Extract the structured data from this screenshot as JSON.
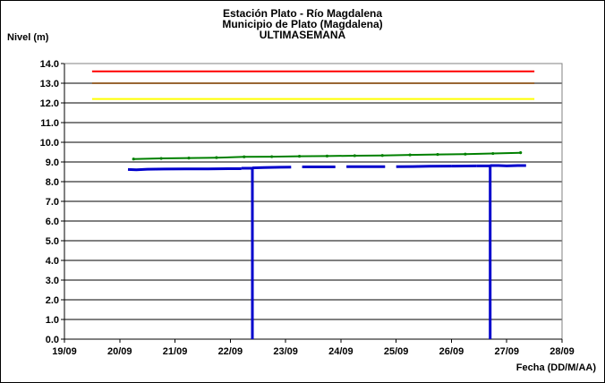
{
  "chart_data": {
    "type": "line",
    "title_lines": [
      "Estación Plato - Río Magdalena",
      "Municipio de Plato (Magdalena)",
      "ULTIMASEMANA"
    ],
    "ylabel": "Nivel (m)",
    "xlabel": "Fecha (DD/M/AA)",
    "ylim": [
      0,
      14
    ],
    "xlim": [
      0,
      9
    ],
    "grid": "horizontal",
    "yticks": [
      "0.0",
      "1.0",
      "2.0",
      "3.0",
      "4.0",
      "5.0",
      "6.0",
      "7.0",
      "8.0",
      "9.0",
      "10.0",
      "11.0",
      "12.0",
      "13.0",
      "14.0"
    ],
    "xticks": [
      "19/09",
      "20/09",
      "21/09",
      "22/09",
      "23/09",
      "24/09",
      "25/09",
      "26/09",
      "27/09",
      "28/09"
    ],
    "reference_lines": [
      {
        "value": 13.6,
        "color": "#ff0000",
        "x": [
          0.5,
          8.5
        ]
      },
      {
        "value": 13.0,
        "color": "#996633",
        "x": [
          0.5,
          8.5
        ]
      },
      {
        "value": 12.2,
        "color": "#ffff00",
        "x": [
          0.5,
          8.5
        ]
      }
    ],
    "series": [
      {
        "color": "#008000",
        "x": [
          1.25,
          1.75,
          2.25,
          2.75,
          3.25,
          3.75,
          4.25,
          4.75,
          5.25,
          5.75,
          6.25,
          6.75,
          7.25,
          7.75,
          8.25
        ],
        "y": [
          9.15,
          9.18,
          9.2,
          9.22,
          9.26,
          9.27,
          9.29,
          9.3,
          9.32,
          9.33,
          9.36,
          9.38,
          9.4,
          9.43,
          9.47
        ]
      },
      {
        "color": "#0000cc",
        "segments": [
          {
            "x": [
              1.15,
              1.3,
              1.5,
              1.8,
              2.2,
              2.6,
              3.0,
              3.2
            ],
            "y": [
              8.62,
              8.6,
              8.63,
              8.64,
              8.65,
              8.65,
              8.66,
              8.66
            ]
          },
          {
            "x": [
              3.2,
              3.4,
              3.4,
              3.4
            ],
            "y": [
              8.68,
              8.68,
              0.0,
              8.7
            ]
          },
          {
            "x": [
              3.4,
              3.6,
              3.9,
              4.1
            ],
            "y": [
              8.7,
              8.72,
              8.73,
              8.74
            ]
          },
          {
            "x": [
              4.3,
              4.9
            ],
            "y": [
              8.75,
              8.75
            ]
          },
          {
            "x": [
              5.1,
              5.8
            ],
            "y": [
              8.76,
              8.76
            ]
          },
          {
            "x": [
              6.0,
              6.3,
              6.6,
              7.0
            ],
            "y": [
              8.76,
              8.77,
              8.78,
              8.79
            ]
          },
          {
            "x": [
              7.0,
              7.45
            ],
            "y": [
              8.79,
              8.8
            ]
          },
          {
            "x": [
              7.45,
              7.6,
              7.7,
              7.7,
              7.7
            ],
            "y": [
              8.8,
              8.8,
              8.8,
              0.0,
              8.82
            ]
          },
          {
            "x": [
              7.7,
              7.85,
              8.0,
              8.2,
              8.35
            ],
            "y": [
              8.82,
              8.82,
              8.8,
              8.82,
              8.82
            ]
          }
        ]
      }
    ]
  }
}
